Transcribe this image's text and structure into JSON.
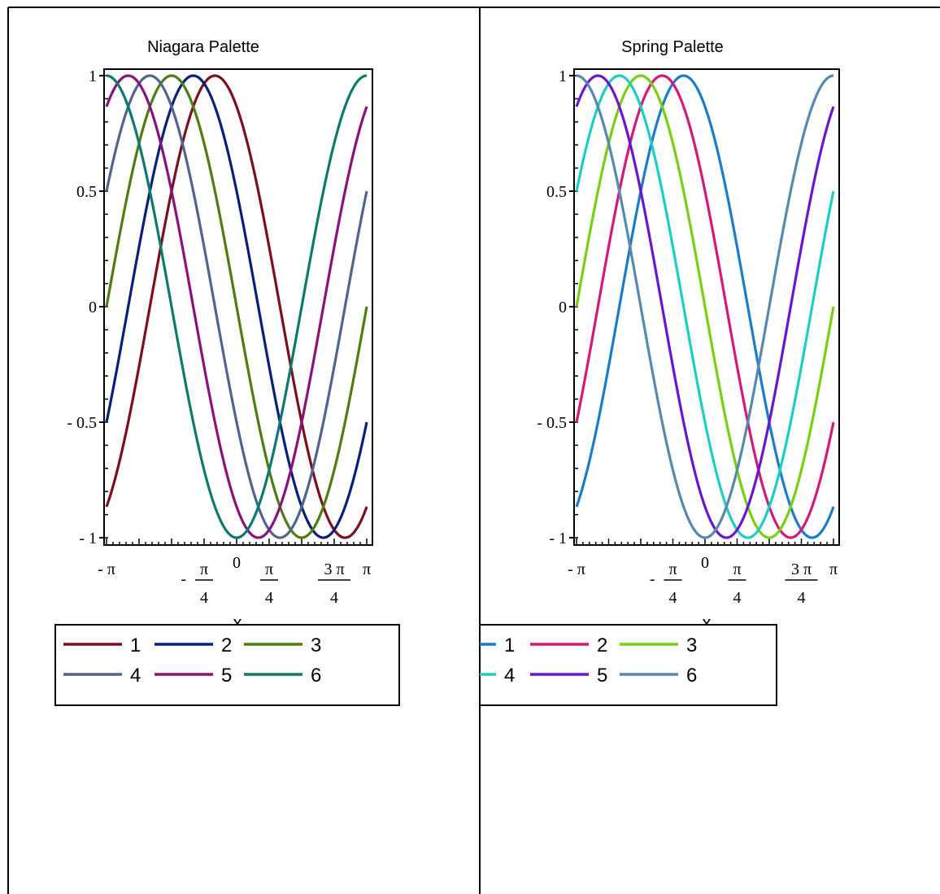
{
  "chart_data": [
    {
      "type": "line",
      "title": "Niagara Palette",
      "xlabel": "x",
      "ylabel": "",
      "xlim": [
        "-π",
        "π"
      ],
      "ylim": [
        -1,
        1
      ],
      "y_ticks": [
        "1",
        "0.5",
        "0",
        "- 0.5",
        "- 1"
      ],
      "x_ticks": [
        {
          "label": "- π",
          "x": -3.14159
        },
        {
          "label": "- π/4",
          "x": -0.7854
        },
        {
          "label": "0",
          "x": 0
        },
        {
          "label": "π/4",
          "x": 0.7854
        },
        {
          "label": "3 π/4",
          "x": 2.3562
        },
        {
          "label": "π",
          "x": 3.14159
        }
      ],
      "functions": "y = cos(x + c), c = 0.5236 k for series k = 1..6",
      "series": [
        {
          "name": "1",
          "phase": 0.5236,
          "color": "#7b0f1c"
        },
        {
          "name": "2",
          "phase": 1.0472,
          "color": "#0a1f7c"
        },
        {
          "name": "3",
          "phase": 1.5708,
          "color": "#4e7e10"
        },
        {
          "name": "4",
          "phase": 2.0944,
          "color": "#4f6591"
        },
        {
          "name": "5",
          "phase": 2.618,
          "color": "#8a127a"
        },
        {
          "name": "6",
          "phase": 3.1416,
          "color": "#0d7a6e"
        }
      ],
      "legend": "below",
      "grid": false
    },
    {
      "type": "line",
      "title": "Spring Palette",
      "xlabel": "x",
      "ylabel": "",
      "xlim": [
        "-π",
        "π"
      ],
      "ylim": [
        -1,
        1
      ],
      "y_ticks": [
        "1",
        "0.5",
        "0",
        "- 0.5",
        "- 1"
      ],
      "x_ticks": [
        {
          "label": "- π",
          "x": -3.14159
        },
        {
          "label": "- π/4",
          "x": -0.7854
        },
        {
          "label": "0",
          "x": 0
        },
        {
          "label": "π/4",
          "x": 0.7854
        },
        {
          "label": "3 π/4",
          "x": 2.3562
        },
        {
          "label": "π",
          "x": 3.14159
        }
      ],
      "functions": "y = cos(x + c), c = 0.5236 k for series k = 1..6",
      "series": [
        {
          "name": "1",
          "phase": 0.5236,
          "color": "#1a7dc9"
        },
        {
          "name": "2",
          "phase": 1.0472,
          "color": "#d3197a"
        },
        {
          "name": "3",
          "phase": 1.5708,
          "color": "#79cf12"
        },
        {
          "name": "4",
          "phase": 2.0944,
          "color": "#1ccfc6"
        },
        {
          "name": "5",
          "phase": 2.618,
          "color": "#6a16cf"
        },
        {
          "name": "6",
          "phase": 3.1416,
          "color": "#5788b0"
        }
      ],
      "legend": "below",
      "grid": false
    }
  ]
}
